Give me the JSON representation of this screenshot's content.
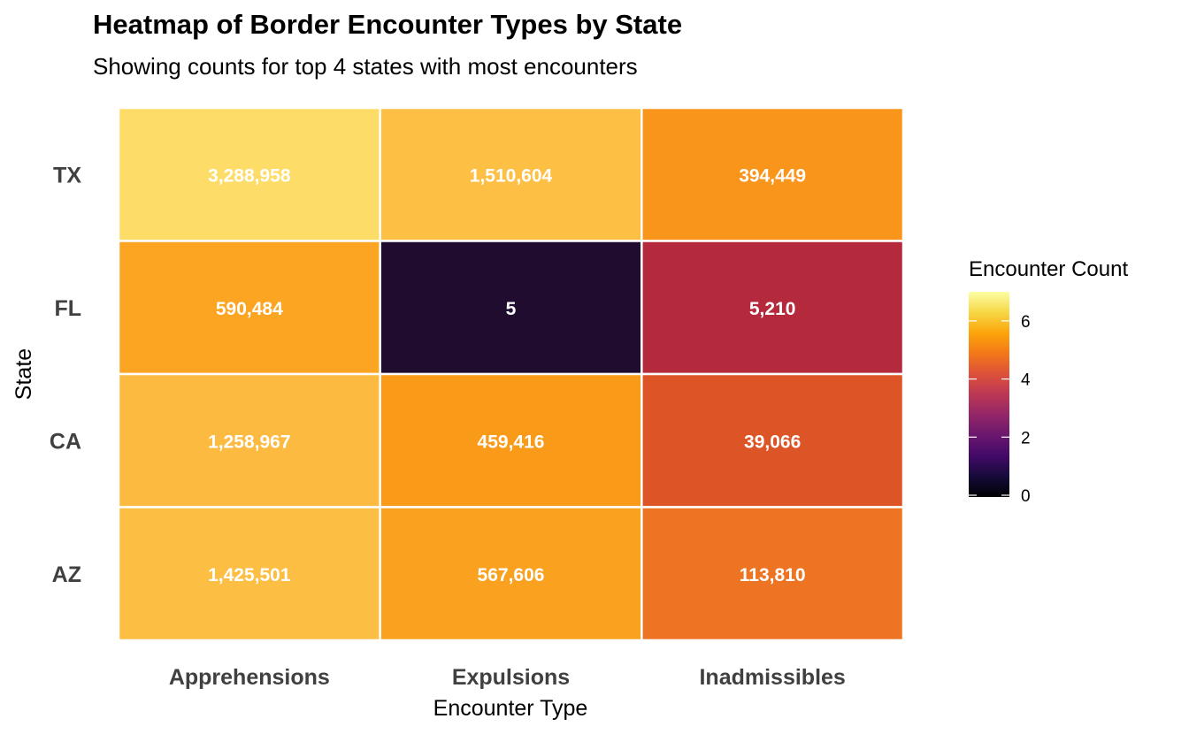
{
  "chart_data": {
    "type": "heatmap",
    "title": "Heatmap of Border Encounter Types by State",
    "subtitle": "Showing counts for top 4 states with most encounters",
    "xlabel": "Encounter Type",
    "ylabel": "State",
    "x_categories": [
      "Apprehensions",
      "Expulsions",
      "Inadmissibles"
    ],
    "y_categories": [
      "TX",
      "FL",
      "CA",
      "AZ"
    ],
    "values": [
      [
        3288958,
        1510604,
        394449
      ],
      [
        590484,
        5,
        5210
      ],
      [
        1258967,
        459416,
        39066
      ],
      [
        1425501,
        567606,
        113810
      ]
    ],
    "labels": [
      [
        "3,288,958",
        "1,510,604",
        "394,449"
      ],
      [
        "590,484",
        "5",
        "5,210"
      ],
      [
        "1,258,967",
        "459,416",
        "39,066"
      ],
      [
        "1,425,501",
        "567,606",
        "113,810"
      ]
    ],
    "fill_colors": [
      [
        "#fddc67",
        "#fec044",
        "#f9951a"
      ],
      [
        "#fba522",
        "#200c2f",
        "#b42a3c"
      ],
      [
        "#fdba40",
        "#f99a19",
        "#dd5426"
      ],
      [
        "#fdbe44",
        "#faa21f",
        "#ed7422"
      ]
    ],
    "color_scale": "log10",
    "legend": {
      "title": "Encounter Count",
      "ticks": [
        "6",
        "4",
        "2",
        "0"
      ],
      "tick_values": [
        6,
        4,
        2,
        0
      ],
      "range": [
        0,
        7
      ],
      "position": "right",
      "colormap": "inferno"
    },
    "grid": false
  }
}
